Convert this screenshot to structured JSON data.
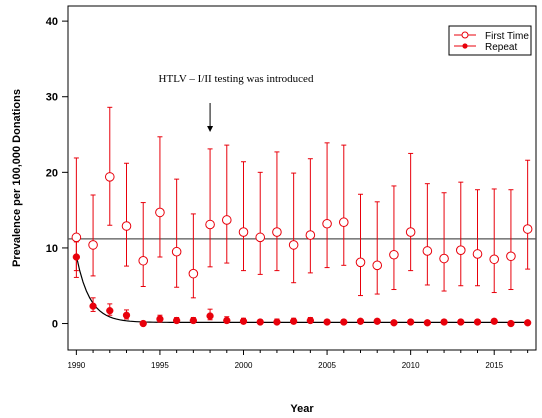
{
  "chart_data": {
    "type": "scatter",
    "title": "",
    "xlabel": "Year",
    "ylabel": "Prevalence per 100,000 Donations",
    "xlim": [
      1989.5,
      2017.5
    ],
    "ylim": [
      -3.5,
      42
    ],
    "x_ticks": [
      1990,
      1995,
      2000,
      2005,
      2010,
      2015
    ],
    "y_ticks": [
      0,
      10,
      20,
      30,
      40
    ],
    "grid": false,
    "legend_position": "top-right",
    "colors": {
      "series": "#e8000b",
      "reference_line": "#555555",
      "fit_curve": "#000000",
      "axis": "#000000"
    },
    "annotation": {
      "text": "HTLV – I/II testing was introduced",
      "x": 1998
    },
    "reference_line_value": 11.2,
    "series": [
      {
        "name": "First Time",
        "marker": "open-circle",
        "x": [
          1990,
          1991,
          1992,
          1993,
          1994,
          1995,
          1996,
          1997,
          1998,
          1999,
          2000,
          2001,
          2002,
          2003,
          2004,
          2005,
          2006,
          2007,
          2008,
          2009,
          2010,
          2011,
          2012,
          2013,
          2014,
          2015,
          2016,
          2017
        ],
        "values": [
          11.4,
          10.4,
          19.4,
          12.9,
          8.3,
          14.7,
          9.5,
          6.6,
          13.1,
          13.7,
          12.1,
          11.4,
          12.1,
          10.4,
          11.7,
          13.2,
          13.4,
          8.1,
          7.7,
          9.1,
          12.1,
          9.6,
          8.6,
          9.7,
          9.2,
          8.5,
          8.9,
          12.5
        ],
        "lower": [
          6.1,
          6.3,
          13.0,
          7.6,
          4.9,
          8.8,
          4.8,
          3.4,
          7.5,
          8.0,
          7.0,
          6.5,
          7.0,
          5.4,
          6.7,
          7.4,
          7.7,
          3.7,
          3.9,
          4.5,
          7.0,
          5.1,
          4.3,
          5.0,
          5.0,
          4.1,
          4.5,
          7.2
        ],
        "upper": [
          21.9,
          17.0,
          28.6,
          21.2,
          16.0,
          24.7,
          19.1,
          14.5,
          23.1,
          23.6,
          21.4,
          20.0,
          22.7,
          19.9,
          21.8,
          23.9,
          23.6,
          17.1,
          16.1,
          18.2,
          22.5,
          18.5,
          17.3,
          18.7,
          17.7,
          17.8,
          17.7,
          21.6
        ]
      },
      {
        "name": "Repeat",
        "marker": "filled-circle",
        "x": [
          1990,
          1991,
          1992,
          1993,
          1994,
          1995,
          1996,
          1997,
          1998,
          1999,
          2000,
          2001,
          2002,
          2003,
          2004,
          2005,
          2006,
          2007,
          2008,
          2009,
          2010,
          2011,
          2012,
          2013,
          2014,
          2015,
          2016,
          2017
        ],
        "values": [
          8.8,
          2.3,
          1.7,
          1.1,
          0.0,
          0.6,
          0.4,
          0.4,
          1.0,
          0.4,
          0.3,
          0.2,
          0.2,
          0.3,
          0.4,
          0.2,
          0.2,
          0.3,
          0.3,
          0.1,
          0.2,
          0.1,
          0.2,
          0.2,
          0.2,
          0.3,
          0.0,
          0.1
        ],
        "lower": [
          7.0,
          1.6,
          1.1,
          0.6,
          0.0,
          0.2,
          0.1,
          0.1,
          0.5,
          0.1,
          0.0,
          0.0,
          0.0,
          0.0,
          0.1,
          0.0,
          0.0,
          0.0,
          0.0,
          0.0,
          0.0,
          0.0,
          0.0,
          0.0,
          0.0,
          0.0,
          0.0,
          0.0
        ],
        "upper": [
          10.8,
          3.4,
          2.6,
          1.8,
          0.3,
          1.1,
          0.8,
          0.8,
          1.9,
          0.9,
          0.7,
          0.5,
          0.6,
          0.7,
          0.8,
          0.5,
          0.5,
          0.6,
          0.6,
          0.4,
          0.5,
          0.4,
          0.5,
          0.5,
          0.5,
          0.6,
          0.3,
          0.3
        ]
      }
    ]
  }
}
